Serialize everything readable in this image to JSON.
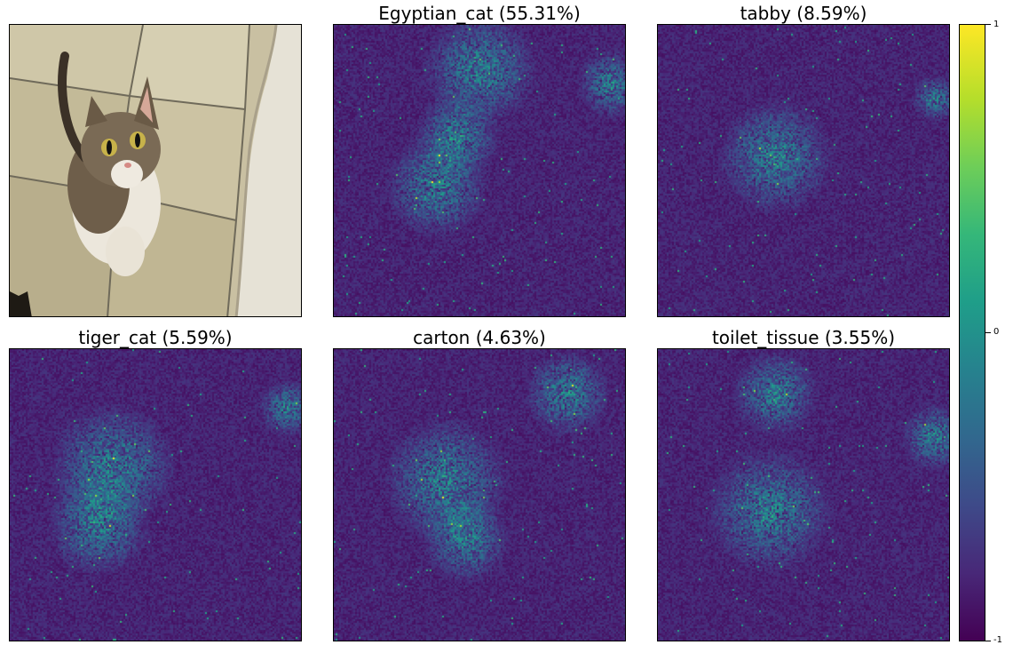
{
  "chart_data": {
    "type": "heatmap",
    "original_image": {
      "subject": "cat-photo"
    },
    "panels": [
      {
        "title": "Egyptian_cat (55.31%)",
        "label": "Egyptian_cat",
        "probability": 55.31
      },
      {
        "title": "tabby (8.59%)",
        "label": "tabby",
        "probability": 8.59
      },
      {
        "title": "tiger_cat (5.59%)",
        "label": "tiger_cat",
        "probability": 5.59
      },
      {
        "title": "carton (4.63%)",
        "label": "carton",
        "probability": 4.63
      },
      {
        "title": "toilet_tissue (3.55%)",
        "label": "toilet_tissue",
        "probability": 3.55
      }
    ],
    "colorbar": {
      "colormap": "viridis",
      "range": [
        -1,
        1
      ],
      "ticks": [
        "1",
        "0",
        "-1"
      ]
    }
  },
  "colors": {
    "viridis_low": "#440154",
    "viridis_high": "#fde725"
  }
}
